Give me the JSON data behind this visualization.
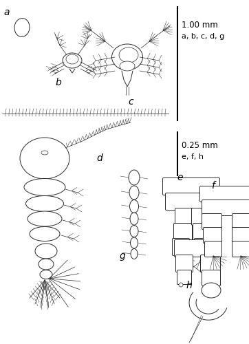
{
  "bg_color": "#ffffff",
  "line_color": "#2a2a2a",
  "label_color": "#000000",
  "scale_text1": "1.00 mm",
  "scale_text2": "a, b, c, d, g",
  "scale_text3": "0.25 mm",
  "scale_text4": "e, f, h",
  "font_size_label": 10,
  "font_size_scale": 8.5,
  "figsize": [
    3.62,
    5.0
  ],
  "dpi": 100
}
